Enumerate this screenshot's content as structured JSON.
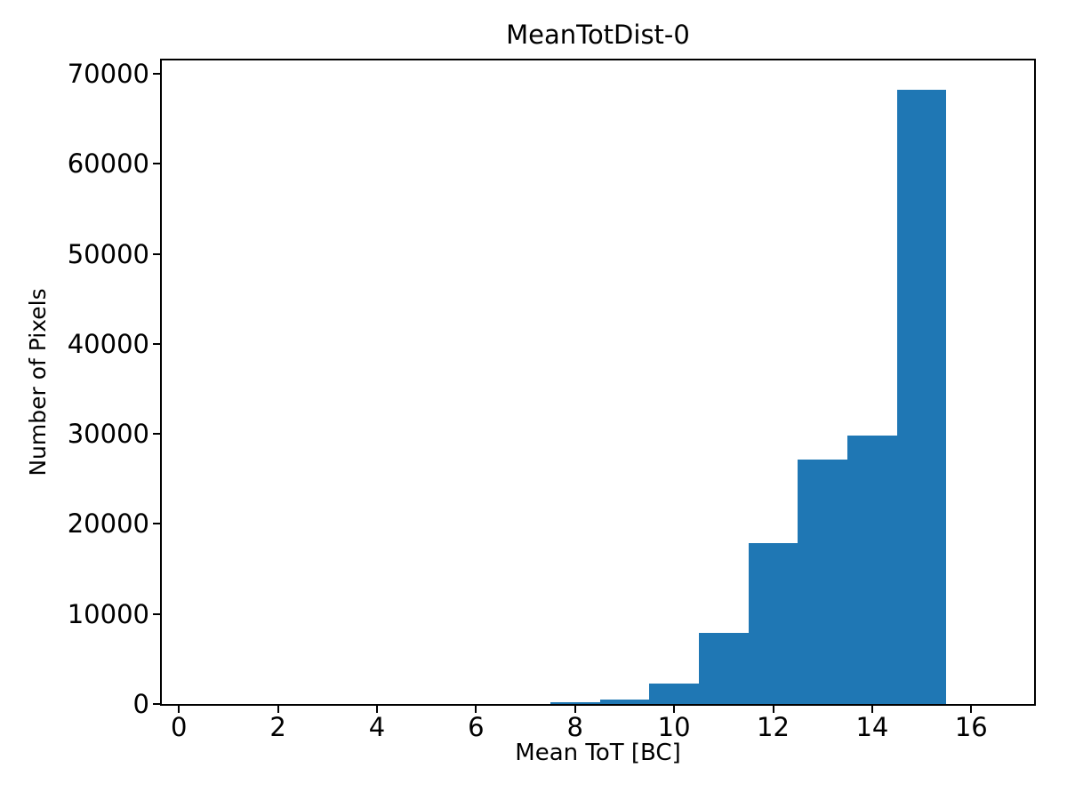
{
  "chart_data": {
    "type": "bar",
    "subtype": "histogram",
    "title": "MeanTotDist-0",
    "xlabel": "Mean ToT [BC]",
    "ylabel": "Number of Pixels",
    "bin_edges": [
      7.5,
      8.5,
      9.5,
      10.5,
      11.5,
      12.5,
      13.5,
      14.5,
      15.5
    ],
    "counts": [
      250,
      500,
      2270,
      7930,
      17900,
      27180,
      29840,
      68220
    ],
    "xticks": [
      0,
      2,
      4,
      6,
      8,
      10,
      12,
      14,
      16
    ],
    "yticks": [
      0,
      10000,
      20000,
      30000,
      40000,
      50000,
      60000,
      70000
    ],
    "xlim": [
      -0.345,
      17.27
    ],
    "ylim": [
      0,
      71470
    ],
    "bar_color": "#1f77b4",
    "text_color": "#000000",
    "background_color": "#ffffff",
    "grid": false,
    "legend": false
  }
}
